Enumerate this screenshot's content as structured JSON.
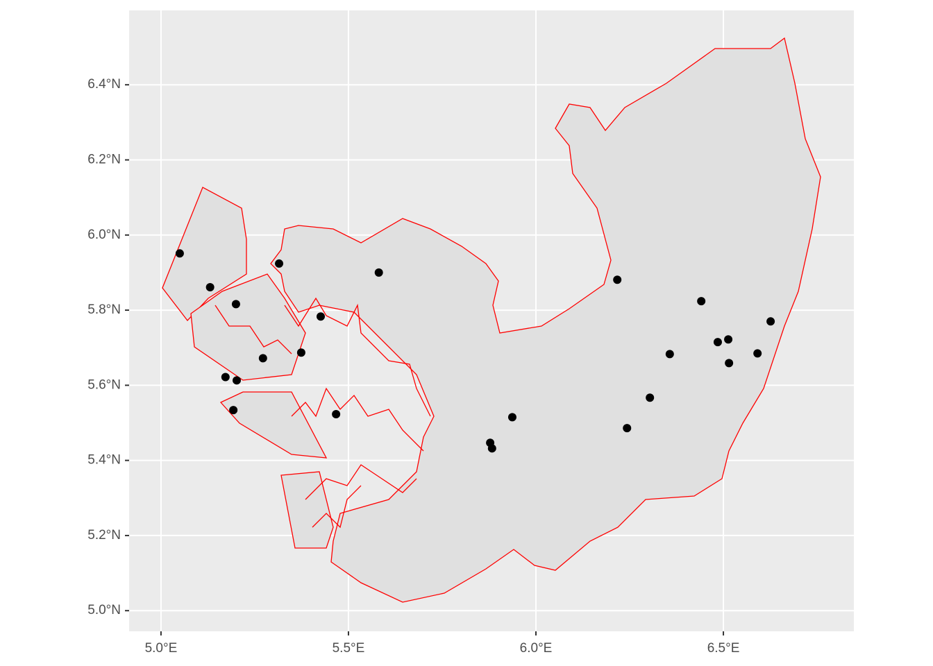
{
  "chart_data": {
    "type": "scatter",
    "x": [
      5.05,
      5.131,
      5.2,
      5.315,
      5.581,
      5.426,
      5.272,
      5.374,
      5.172,
      5.202,
      5.193,
      5.467,
      5.878,
      5.883,
      5.937,
      6.217,
      6.243,
      6.304,
      6.357,
      6.441,
      6.485,
      6.513,
      6.515,
      6.591,
      6.626
    ],
    "series": [
      {
        "color": "#000000",
        "values": [
          5.951,
          5.861,
          5.816,
          5.924,
          5.9,
          5.783,
          5.672,
          5.687,
          5.622,
          5.613,
          5.534,
          5.523,
          5.447,
          5.432,
          5.515,
          5.881,
          5.486,
          5.567,
          5.683,
          5.824,
          5.715,
          5.722,
          5.659,
          5.685,
          5.77
        ]
      }
    ],
    "xlim": [
      4.915,
      6.848
    ],
    "ylim": [
      4.945,
      6.598
    ],
    "xticks": [
      {
        "value": 5.0,
        "label": "5.0°E"
      },
      {
        "value": 5.5,
        "label": "5.5°E"
      },
      {
        "value": 6.0,
        "label": "6.0°E"
      },
      {
        "value": 6.5,
        "label": "6.5°E"
      }
    ],
    "yticks": [
      {
        "value": 5.0,
        "label": "5.0°N"
      },
      {
        "value": 5.2,
        "label": "5.2°N"
      },
      {
        "value": 5.4,
        "label": "5.4°N"
      },
      {
        "value": 5.6,
        "label": "5.6°N"
      },
      {
        "value": 5.8,
        "label": "5.8°N"
      },
      {
        "value": 6.0,
        "label": "6.0°N"
      },
      {
        "value": 6.2,
        "label": "6.2°N"
      },
      {
        "value": 6.4,
        "label": "6.4°N"
      }
    ],
    "grid": true
  }
}
